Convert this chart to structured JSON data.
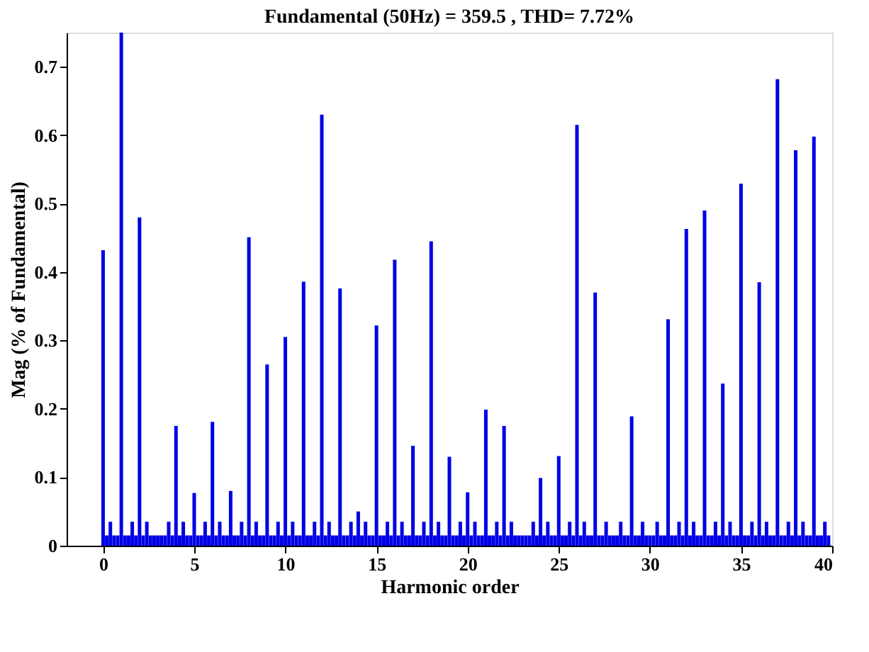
{
  "chart_data": {
    "type": "bar",
    "title": "Fundamental (50Hz) = 359.5 , THD= 7.72%",
    "xlabel": "Harmonic order",
    "ylabel": "Mag (% of Fundamental)",
    "xlim": [
      -2,
      40
    ],
    "xticks": [
      0,
      5,
      10,
      15,
      20,
      25,
      30,
      35,
      40
    ],
    "ylim": [
      0,
      0.75
    ],
    "yticks": [
      0,
      0.1,
      0.2,
      0.3,
      0.4,
      0.5,
      0.6,
      0.7
    ],
    "grid": false,
    "legend": false,
    "series": [
      {
        "color": "#0000e6",
        "x": [
          0,
          0.2,
          0.4,
          0.6,
          0.8,
          1,
          1.2,
          1.4,
          1.6,
          1.8,
          2,
          2.2,
          2.4,
          2.6,
          2.8,
          3,
          3.2,
          3.4,
          3.6,
          3.8,
          4,
          4.2,
          4.4,
          4.6,
          4.8,
          5,
          5.2,
          5.4,
          5.6,
          5.8,
          6,
          6.2,
          6.4,
          6.6,
          6.8,
          7,
          7.2,
          7.4,
          7.6,
          7.8,
          8,
          8.2,
          8.4,
          8.6,
          8.8,
          9,
          9.2,
          9.4,
          9.6,
          9.8,
          10,
          10.2,
          10.4,
          10.6,
          10.8,
          11,
          11.2,
          11.4,
          11.6,
          11.8,
          12,
          12.2,
          12.4,
          12.6,
          12.8,
          13,
          13.2,
          13.4,
          13.6,
          13.8,
          14,
          14.2,
          14.4,
          14.6,
          14.8,
          15,
          15.2,
          15.4,
          15.6,
          15.8,
          16,
          16.2,
          16.4,
          16.6,
          16.8,
          17,
          17.2,
          17.4,
          17.6,
          17.8,
          18,
          18.2,
          18.4,
          18.6,
          18.8,
          19,
          19.2,
          19.4,
          19.6,
          19.8,
          20,
          20.2,
          20.4,
          20.6,
          20.8,
          21,
          21.2,
          21.4,
          21.6,
          21.8,
          22,
          22.2,
          22.4,
          22.6,
          22.8,
          23,
          23.2,
          23.4,
          23.6,
          23.8,
          24,
          24.2,
          24.4,
          24.6,
          24.8,
          25,
          25.2,
          25.4,
          25.6,
          25.8,
          26,
          26.2,
          26.4,
          26.6,
          26.8,
          27,
          27.2,
          27.4,
          27.6,
          27.8,
          28,
          28.2,
          28.4,
          28.6,
          28.8,
          29,
          29.2,
          29.4,
          29.6,
          29.8,
          30,
          30.2,
          30.4,
          30.6,
          30.8,
          31,
          31.2,
          31.4,
          31.6,
          31.8,
          32,
          32.2,
          32.4,
          32.6,
          32.8,
          33,
          33.2,
          33.4,
          33.6,
          33.8,
          34,
          34.2,
          34.4,
          34.6,
          34.8,
          35,
          35.2,
          35.4,
          35.6,
          35.8,
          36,
          36.2,
          36.4,
          36.6,
          36.8,
          37,
          37.2,
          37.4,
          37.6,
          37.8,
          38,
          38.2,
          38.4,
          38.6,
          38.8,
          39,
          39.2,
          39.4,
          39.6,
          39.8
        ],
        "values": [
          0.432,
          0.015,
          0.035,
          0.015,
          0.015,
          0.75,
          0.015,
          0.015,
          0.035,
          0.015,
          0.48,
          0.015,
          0.035,
          0.015,
          0.015,
          0.015,
          0.015,
          0.015,
          0.035,
          0.015,
          0.175,
          0.015,
          0.035,
          0.015,
          0.015,
          0.077,
          0.015,
          0.015,
          0.035,
          0.015,
          0.181,
          0.015,
          0.035,
          0.015,
          0.015,
          0.08,
          0.015,
          0.015,
          0.035,
          0.015,
          0.451,
          0.015,
          0.035,
          0.015,
          0.015,
          0.265,
          0.015,
          0.015,
          0.035,
          0.015,
          0.305,
          0.015,
          0.035,
          0.015,
          0.015,
          0.386,
          0.015,
          0.015,
          0.035,
          0.015,
          0.63,
          0.015,
          0.035,
          0.015,
          0.015,
          0.376,
          0.015,
          0.015,
          0.035,
          0.015,
          0.05,
          0.015,
          0.035,
          0.015,
          0.015,
          0.322,
          0.015,
          0.015,
          0.035,
          0.015,
          0.418,
          0.015,
          0.035,
          0.015,
          0.015,
          0.146,
          0.015,
          0.015,
          0.035,
          0.015,
          0.445,
          0.015,
          0.035,
          0.015,
          0.015,
          0.13,
          0.015,
          0.015,
          0.035,
          0.015,
          0.078,
          0.015,
          0.035,
          0.015,
          0.015,
          0.199,
          0.015,
          0.015,
          0.035,
          0.015,
          0.175,
          0.015,
          0.035,
          0.015,
          0.015,
          0.015,
          0.015,
          0.015,
          0.035,
          0.015,
          0.099,
          0.015,
          0.035,
          0.015,
          0.015,
          0.131,
          0.015,
          0.015,
          0.035,
          0.015,
          0.615,
          0.015,
          0.035,
          0.015,
          0.015,
          0.37,
          0.015,
          0.015,
          0.035,
          0.015,
          0.015,
          0.015,
          0.035,
          0.015,
          0.015,
          0.189,
          0.015,
          0.015,
          0.035,
          0.015,
          0.015,
          0.015,
          0.035,
          0.015,
          0.015,
          0.331,
          0.015,
          0.015,
          0.035,
          0.015,
          0.463,
          0.015,
          0.035,
          0.015,
          0.015,
          0.49,
          0.015,
          0.015,
          0.035,
          0.015,
          0.237,
          0.015,
          0.035,
          0.015,
          0.015,
          0.529,
          0.015,
          0.015,
          0.035,
          0.015,
          0.385,
          0.015,
          0.035,
          0.015,
          0.015,
          0.682,
          0.015,
          0.015,
          0.035,
          0.015,
          0.578,
          0.015,
          0.035,
          0.015,
          0.015,
          0.598,
          0.015,
          0.015,
          0.035,
          0.015
        ]
      }
    ]
  }
}
